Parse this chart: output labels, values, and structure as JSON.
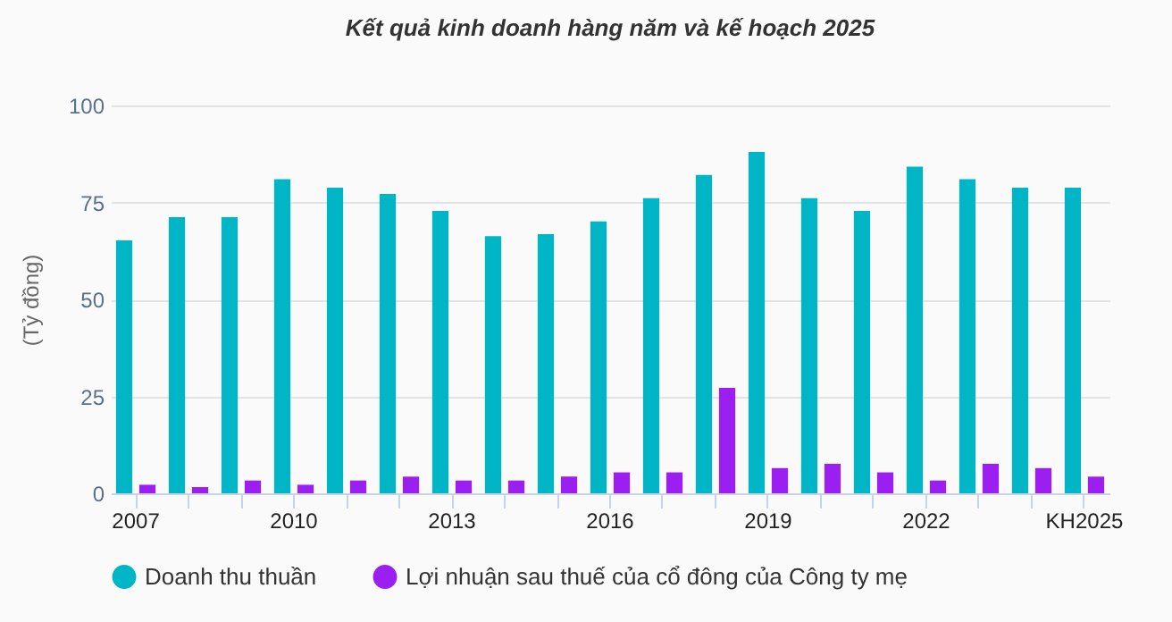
{
  "chart_data": {
    "type": "bar",
    "title": "Kết quả kinh doanh hàng năm và kế hoạch 2025",
    "ylabel": "(Tỷ đồng)",
    "categories": [
      "2007",
      null,
      null,
      "2010",
      null,
      null,
      "2013",
      null,
      null,
      "2016",
      null,
      null,
      "2019",
      null,
      null,
      "2022",
      null,
      null,
      "KH2025"
    ],
    "series": [
      {
        "name": "Doanh thu thuần",
        "color": "#00b5c6",
        "values": [
          65.2,
          71.2,
          71.2,
          81,
          78.8,
          77.2,
          72.8,
          66.3,
          66.8,
          70.1,
          76.1,
          82.1,
          88,
          76.1,
          72.8,
          84.2,
          81,
          78.8,
          78.8
        ]
      },
      {
        "name": "Lợi nhuận sau thuế của cổ đông của Công ty mẹ",
        "color": "#9b1ff0",
        "values": [
          2.2,
          1.6,
          3.3,
          2.2,
          3.3,
          4.3,
          3.3,
          3.3,
          4.3,
          5.4,
          5.4,
          27.2,
          6.5,
          7.6,
          5.4,
          3.3,
          7.6,
          6.5,
          4.3
        ]
      }
    ],
    "ylim": [
      0,
      100
    ],
    "yticks": [
      0,
      25,
      50,
      75,
      100
    ],
    "grid": "y",
    "legend": "bottom"
  }
}
